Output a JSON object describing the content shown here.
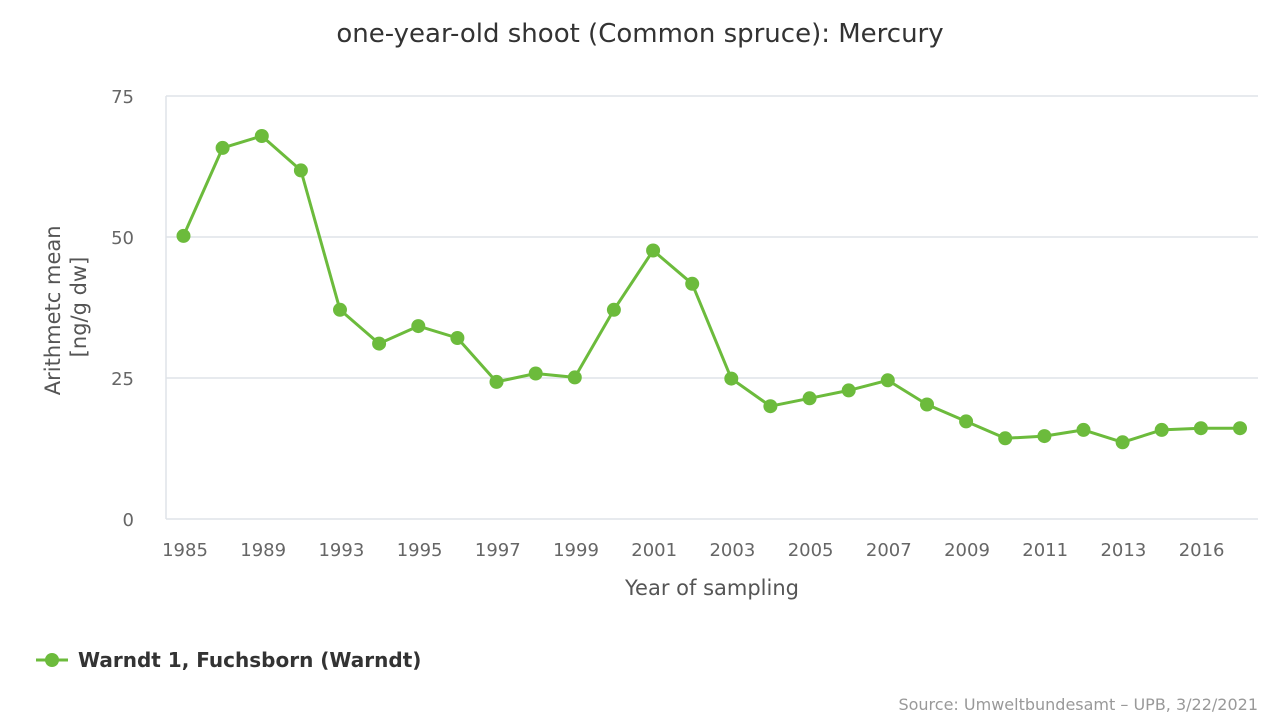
{
  "chart_data": {
    "type": "line",
    "title": "one-year-old shoot (Common spruce): Mercury",
    "xlabel": "Year of sampling",
    "ylabel": [
      "Arithmetc mean",
      "[ng/g dw]"
    ],
    "x_tick_labels": [
      "1985",
      "1989",
      "1993",
      "1995",
      "1997",
      "1999",
      "2001",
      "2003",
      "2005",
      "2007",
      "2009",
      "2011",
      "2013",
      "2016"
    ],
    "y_ticks": [
      0,
      25,
      50,
      75
    ],
    "ylim": [
      0,
      75
    ],
    "grid": true,
    "legend_position": "bottom-left",
    "colors": {
      "series": "#6cbb3c"
    },
    "series": [
      {
        "name": "Warndt 1, Fuchsborn (Warndt)",
        "values": [
          50.2,
          65.8,
          67.9,
          61.8,
          37.1,
          31.1,
          34.2,
          32.1,
          24.3,
          25.8,
          25.1,
          37.1,
          47.6,
          41.7,
          24.9,
          20.0,
          21.4,
          22.8,
          24.6,
          20.3,
          17.3,
          14.3,
          14.7,
          15.8,
          13.6,
          15.8,
          16.1,
          16.1
        ]
      }
    ]
  },
  "credits": "Source: Umweltbundesamt – UPB, 3/22/2021"
}
